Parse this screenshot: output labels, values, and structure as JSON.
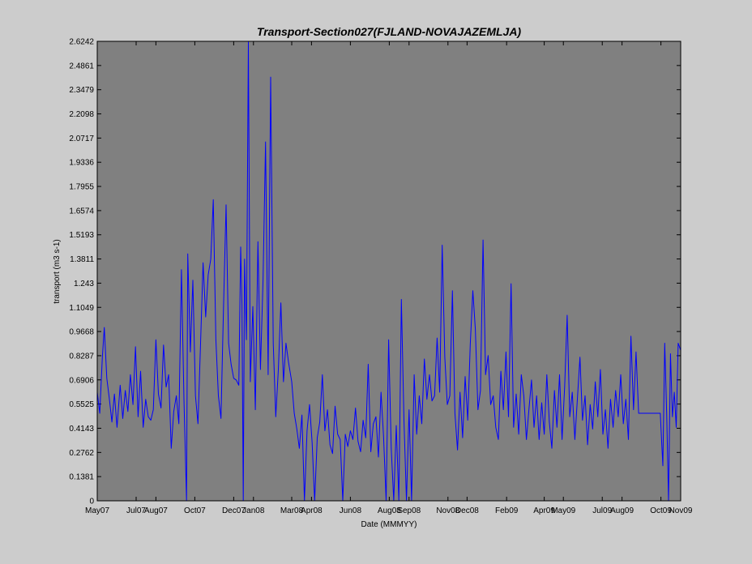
{
  "chart_data": {
    "type": "line",
    "title": "Transport-Section027(FJLAND-NOVAJAZEMLJA)",
    "xlabel": "Date (MMMYY)",
    "ylabel": "transport (m3 s-1)",
    "ylim": [
      0,
      2.6242
    ],
    "y_ticks": [
      "0",
      "0.1381",
      "0.2762",
      "0.4143",
      "0.5525",
      "0.6906",
      "0.8287",
      "0.9668",
      "1.1049",
      "1.243",
      "1.3811",
      "1.5193",
      "1.6574",
      "1.7955",
      "1.9336",
      "2.0717",
      "2.2098",
      "2.3479",
      "2.4861",
      "2.6242"
    ],
    "x_range": [
      "2007-05-01",
      "2009-11-01"
    ],
    "x_ticks": [
      {
        "label": "May07",
        "date": "2007-05-01"
      },
      {
        "label": "Jul07",
        "date": "2007-07-01"
      },
      {
        "label": "Aug07",
        "date": "2007-08-01"
      },
      {
        "label": "Oct07",
        "date": "2007-10-01"
      },
      {
        "label": "Dec07",
        "date": "2007-12-01"
      },
      {
        "label": "Jan08",
        "date": "2008-01-01"
      },
      {
        "label": "Mar08",
        "date": "2008-03-01"
      },
      {
        "label": "Apr08",
        "date": "2008-04-01"
      },
      {
        "label": "Jun08",
        "date": "2008-06-01"
      },
      {
        "label": "Aug08",
        "date": "2008-08-01"
      },
      {
        "label": "Sep08",
        "date": "2008-09-01"
      },
      {
        "label": "Nov08",
        "date": "2008-11-01"
      },
      {
        "label": "Dec08",
        "date": "2008-12-01"
      },
      {
        "label": "Feb09",
        "date": "2009-02-01"
      },
      {
        "label": "Apr09",
        "date": "2009-04-01"
      },
      {
        "label": "May09",
        "date": "2009-05-01"
      },
      {
        "label": "Jul09",
        "date": "2009-07-01"
      },
      {
        "label": "Aug09",
        "date": "2009-08-01"
      },
      {
        "label": "Oct09",
        "date": "2009-10-01"
      },
      {
        "label": "Nov09",
        "date": "2009-11-01"
      }
    ],
    "grid": false,
    "colors": {
      "figure_bg": "#cccccc",
      "plot_bg": "#808080",
      "line": "#0000ff"
    },
    "series": [
      {
        "points": [
          [
            "2007-05-01",
            0.62
          ],
          [
            "2007-05-05",
            0.5
          ],
          [
            "2007-05-09",
            0.82
          ],
          [
            "2007-05-12",
            0.99
          ],
          [
            "2007-05-16",
            0.7
          ],
          [
            "2007-05-20",
            0.58
          ],
          [
            "2007-05-24",
            0.45
          ],
          [
            "2007-05-28",
            0.61
          ],
          [
            "2007-06-01",
            0.42
          ],
          [
            "2007-06-06",
            0.66
          ],
          [
            "2007-06-10",
            0.47
          ],
          [
            "2007-06-14",
            0.63
          ],
          [
            "2007-06-18",
            0.51
          ],
          [
            "2007-06-22",
            0.72
          ],
          [
            "2007-06-26",
            0.55
          ],
          [
            "2007-06-30",
            0.88
          ],
          [
            "2007-07-04",
            0.48
          ],
          [
            "2007-07-08",
            0.74
          ],
          [
            "2007-07-12",
            0.42
          ],
          [
            "2007-07-16",
            0.58
          ],
          [
            "2007-07-20",
            0.48
          ],
          [
            "2007-07-24",
            0.46
          ],
          [
            "2007-07-28",
            0.52
          ],
          [
            "2007-08-01",
            0.92
          ],
          [
            "2007-08-05",
            0.61
          ],
          [
            "2007-08-09",
            0.53
          ],
          [
            "2007-08-13",
            0.89
          ],
          [
            "2007-08-17",
            0.65
          ],
          [
            "2007-08-21",
            0.72
          ],
          [
            "2007-08-25",
            0.3
          ],
          [
            "2007-08-29",
            0.51
          ],
          [
            "2007-09-02",
            0.6
          ],
          [
            "2007-09-06",
            0.44
          ],
          [
            "2007-09-10",
            1.32
          ],
          [
            "2007-09-14",
            0.58
          ],
          [
            "2007-09-18",
            0.0
          ],
          [
            "2007-09-20",
            1.41
          ],
          [
            "2007-09-24",
            0.85
          ],
          [
            "2007-09-28",
            1.26
          ],
          [
            "2007-10-02",
            0.6
          ],
          [
            "2007-10-06",
            0.44
          ],
          [
            "2007-10-10",
            0.9
          ],
          [
            "2007-10-14",
            1.36
          ],
          [
            "2007-10-18",
            1.05
          ],
          [
            "2007-10-22",
            1.29
          ],
          [
            "2007-10-26",
            1.38
          ],
          [
            "2007-10-30",
            1.72
          ],
          [
            "2007-11-03",
            0.92
          ],
          [
            "2007-11-07",
            0.6
          ],
          [
            "2007-11-11",
            0.47
          ],
          [
            "2007-11-15",
            1.1
          ],
          [
            "2007-11-19",
            1.69
          ],
          [
            "2007-11-23",
            0.9
          ],
          [
            "2007-11-27",
            0.78
          ],
          [
            "2007-12-01",
            0.7
          ],
          [
            "2007-12-05",
            0.69
          ],
          [
            "2007-12-09",
            0.66
          ],
          [
            "2007-12-12",
            1.45
          ],
          [
            "2007-12-14",
            1.12
          ],
          [
            "2007-12-16",
            0.0
          ],
          [
            "2007-12-18",
            1.38
          ],
          [
            "2007-12-21",
            0.92
          ],
          [
            "2007-12-24",
            2.62
          ],
          [
            "2007-12-27",
            0.68
          ],
          [
            "2007-12-31",
            1.11
          ],
          [
            "2008-01-04",
            0.52
          ],
          [
            "2008-01-08",
            1.48
          ],
          [
            "2008-01-12",
            0.75
          ],
          [
            "2008-01-16",
            1.26
          ],
          [
            "2008-01-20",
            2.05
          ],
          [
            "2008-01-24",
            0.72
          ],
          [
            "2008-01-28",
            2.42
          ],
          [
            "2008-02-01",
            0.9
          ],
          [
            "2008-02-05",
            0.48
          ],
          [
            "2008-02-09",
            0.75
          ],
          [
            "2008-02-13",
            1.13
          ],
          [
            "2008-02-17",
            0.68
          ],
          [
            "2008-02-21",
            0.9
          ],
          [
            "2008-02-25",
            0.79
          ],
          [
            "2008-03-01",
            0.68
          ],
          [
            "2008-03-05",
            0.5
          ],
          [
            "2008-03-09",
            0.41
          ],
          [
            "2008-03-13",
            0.3
          ],
          [
            "2008-03-17",
            0.49
          ],
          [
            "2008-03-21",
            0.0
          ],
          [
            "2008-03-25",
            0.4
          ],
          [
            "2008-03-29",
            0.55
          ],
          [
            "2008-04-02",
            0.33
          ],
          [
            "2008-04-06",
            0.0
          ],
          [
            "2008-04-10",
            0.36
          ],
          [
            "2008-04-14",
            0.45
          ],
          [
            "2008-04-18",
            0.72
          ],
          [
            "2008-04-22",
            0.4
          ],
          [
            "2008-04-26",
            0.52
          ],
          [
            "2008-04-30",
            0.32
          ],
          [
            "2008-05-04",
            0.27
          ],
          [
            "2008-05-08",
            0.54
          ],
          [
            "2008-05-12",
            0.38
          ],
          [
            "2008-05-16",
            0.35
          ],
          [
            "2008-05-20",
            0.0
          ],
          [
            "2008-05-24",
            0.38
          ],
          [
            "2008-05-28",
            0.31
          ],
          [
            "2008-06-01",
            0.4
          ],
          [
            "2008-06-05",
            0.35
          ],
          [
            "2008-06-09",
            0.53
          ],
          [
            "2008-06-13",
            0.34
          ],
          [
            "2008-06-17",
            0.28
          ],
          [
            "2008-06-21",
            0.46
          ],
          [
            "2008-06-25",
            0.36
          ],
          [
            "2008-06-29",
            0.78
          ],
          [
            "2008-07-03",
            0.28
          ],
          [
            "2008-07-07",
            0.44
          ],
          [
            "2008-07-11",
            0.48
          ],
          [
            "2008-07-15",
            0.25
          ],
          [
            "2008-07-19",
            0.62
          ],
          [
            "2008-07-23",
            0.37
          ],
          [
            "2008-07-27",
            0.0
          ],
          [
            "2008-07-31",
            0.92
          ],
          [
            "2008-08-04",
            0.3
          ],
          [
            "2008-08-08",
            0.0
          ],
          [
            "2008-08-12",
            0.43
          ],
          [
            "2008-08-16",
            0.0
          ],
          [
            "2008-08-20",
            1.15
          ],
          [
            "2008-08-24",
            0.46
          ],
          [
            "2008-08-28",
            0.0
          ],
          [
            "2008-09-01",
            0.52
          ],
          [
            "2008-09-05",
            0.0
          ],
          [
            "2008-09-09",
            0.72
          ],
          [
            "2008-09-13",
            0.38
          ],
          [
            "2008-09-17",
            0.6
          ],
          [
            "2008-09-21",
            0.44
          ],
          [
            "2008-09-25",
            0.81
          ],
          [
            "2008-09-29",
            0.58
          ],
          [
            "2008-10-03",
            0.72
          ],
          [
            "2008-10-07",
            0.57
          ],
          [
            "2008-10-11",
            0.6
          ],
          [
            "2008-10-15",
            0.93
          ],
          [
            "2008-10-19",
            0.62
          ],
          [
            "2008-10-23",
            1.46
          ],
          [
            "2008-10-27",
            0.82
          ],
          [
            "2008-10-31",
            0.55
          ],
          [
            "2008-11-04",
            0.6
          ],
          [
            "2008-11-08",
            1.2
          ],
          [
            "2008-11-12",
            0.5
          ],
          [
            "2008-11-16",
            0.29
          ],
          [
            "2008-11-20",
            0.62
          ],
          [
            "2008-11-24",
            0.36
          ],
          [
            "2008-11-28",
            0.71
          ],
          [
            "2008-12-02",
            0.46
          ],
          [
            "2008-12-06",
            0.89
          ],
          [
            "2008-12-10",
            1.2
          ],
          [
            "2008-12-14",
            0.98
          ],
          [
            "2008-12-18",
            0.52
          ],
          [
            "2008-12-22",
            0.63
          ],
          [
            "2008-12-26",
            1.49
          ],
          [
            "2008-12-30",
            0.72
          ],
          [
            "2009-01-03",
            0.83
          ],
          [
            "2009-01-07",
            0.55
          ],
          [
            "2009-01-11",
            0.6
          ],
          [
            "2009-01-15",
            0.42
          ],
          [
            "2009-01-19",
            0.35
          ],
          [
            "2009-01-23",
            0.74
          ],
          [
            "2009-01-27",
            0.52
          ],
          [
            "2009-01-31",
            0.85
          ],
          [
            "2009-02-04",
            0.48
          ],
          [
            "2009-02-08",
            1.24
          ],
          [
            "2009-02-12",
            0.42
          ],
          [
            "2009-02-16",
            0.61
          ],
          [
            "2009-02-20",
            0.38
          ],
          [
            "2009-02-24",
            0.72
          ],
          [
            "2009-02-28",
            0.6
          ],
          [
            "2009-03-04",
            0.35
          ],
          [
            "2009-03-08",
            0.52
          ],
          [
            "2009-03-12",
            0.69
          ],
          [
            "2009-03-16",
            0.42
          ],
          [
            "2009-03-20",
            0.6
          ],
          [
            "2009-03-24",
            0.35
          ],
          [
            "2009-03-28",
            0.56
          ],
          [
            "2009-04-01",
            0.38
          ],
          [
            "2009-04-05",
            0.72
          ],
          [
            "2009-04-09",
            0.45
          ],
          [
            "2009-04-13",
            0.3
          ],
          [
            "2009-04-17",
            0.63
          ],
          [
            "2009-04-21",
            0.42
          ],
          [
            "2009-04-25",
            0.72
          ],
          [
            "2009-04-29",
            0.35
          ],
          [
            "2009-05-03",
            0.65
          ],
          [
            "2009-05-07",
            1.06
          ],
          [
            "2009-05-11",
            0.48
          ],
          [
            "2009-05-15",
            0.62
          ],
          [
            "2009-05-19",
            0.35
          ],
          [
            "2009-05-23",
            0.58
          ],
          [
            "2009-05-27",
            0.82
          ],
          [
            "2009-05-31",
            0.46
          ],
          [
            "2009-06-04",
            0.6
          ],
          [
            "2009-06-08",
            0.32
          ],
          [
            "2009-06-12",
            0.55
          ],
          [
            "2009-06-16",
            0.41
          ],
          [
            "2009-06-20",
            0.68
          ],
          [
            "2009-06-24",
            0.48
          ],
          [
            "2009-06-28",
            0.75
          ],
          [
            "2009-07-02",
            0.38
          ],
          [
            "2009-07-06",
            0.52
          ],
          [
            "2009-07-10",
            0.3
          ],
          [
            "2009-07-14",
            0.58
          ],
          [
            "2009-07-18",
            0.42
          ],
          [
            "2009-07-22",
            0.63
          ],
          [
            "2009-07-26",
            0.48
          ],
          [
            "2009-07-30",
            0.72
          ],
          [
            "2009-08-03",
            0.44
          ],
          [
            "2009-08-07",
            0.58
          ],
          [
            "2009-08-11",
            0.35
          ],
          [
            "2009-08-15",
            0.94
          ],
          [
            "2009-08-19",
            0.52
          ],
          [
            "2009-08-23",
            0.85
          ],
          [
            "2009-08-27",
            0.5
          ],
          [
            "2009-08-31",
            0.5
          ],
          [
            "2009-09-15",
            0.5
          ],
          [
            "2009-09-30",
            0.5
          ],
          [
            "2009-10-04",
            0.2
          ],
          [
            "2009-10-07",
            0.9
          ],
          [
            "2009-10-10",
            0.5
          ],
          [
            "2009-10-13",
            0.0
          ],
          [
            "2009-10-16",
            0.84
          ],
          [
            "2009-10-19",
            0.48
          ],
          [
            "2009-10-22",
            0.62
          ],
          [
            "2009-10-25",
            0.42
          ],
          [
            "2009-10-28",
            0.9
          ],
          [
            "2009-11-01",
            0.86
          ]
        ]
      }
    ]
  }
}
